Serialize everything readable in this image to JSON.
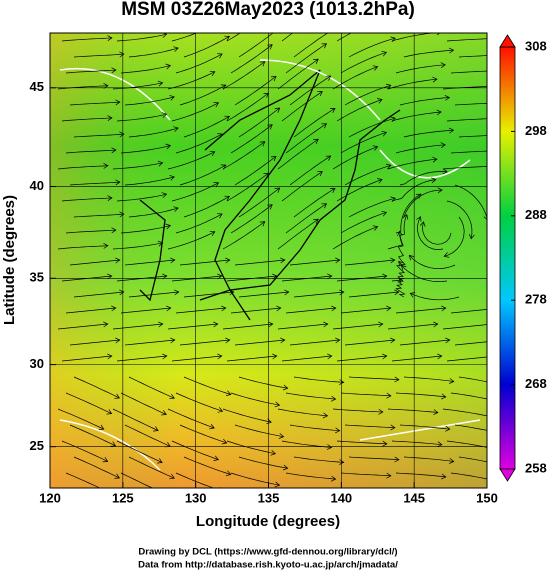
{
  "chart_data": {
    "type": "map",
    "title": "MSM 03Z26May2023 (1013.2hPa)",
    "x_label": "Longitude (degrees)",
    "y_label": "Latitude  (degrees)",
    "xlim": [
      120,
      150
    ],
    "xticks": [
      120,
      125,
      130,
      135,
      140,
      145,
      150
    ],
    "ylim": [
      22.4,
      47.6
    ],
    "yticks": [
      25,
      30,
      35,
      40,
      45
    ],
    "y_scale": "mercator",
    "grid": true,
    "colorbar": {
      "lim": [
        258,
        308
      ],
      "ticks": [
        258,
        268,
        278,
        288,
        298,
        308
      ],
      "colors": [
        "#e000e0",
        "#0000d0",
        "#00c8ff",
        "#00d040",
        "#e8f000",
        "#ff1000"
      ]
    },
    "credits": [
      "Drawing by DCL (https://www.gfd-dennou.org/library/dcl/)",
      "Data from http://database.rish.kyoto-u.ac.jp/arch/jmadata/"
    ]
  }
}
